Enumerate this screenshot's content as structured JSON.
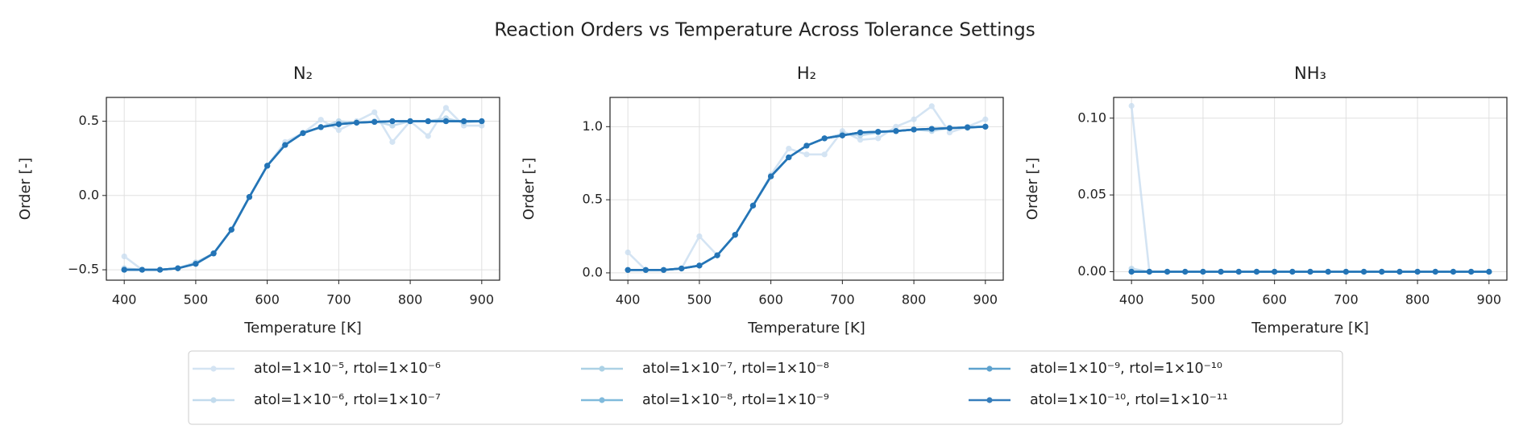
{
  "title": "Reaction Orders vs Temperature Across Tolerance Settings",
  "legend": "below",
  "chart_data": [
    {
      "type": "line",
      "title": "N₂",
      "xlabel": "Temperature [K]",
      "ylabel": "Order [-]",
      "x": [
        400,
        425,
        450,
        475,
        500,
        525,
        550,
        575,
        600,
        625,
        650,
        675,
        700,
        725,
        750,
        775,
        800,
        825,
        850,
        875,
        900
      ],
      "xlim": [
        375,
        925
      ],
      "ylim": [
        -0.57,
        0.66
      ],
      "xticks": [
        400,
        500,
        600,
        700,
        800,
        900
      ],
      "yticks": [
        {
          "value": -0.5,
          "label": "−0.5"
        },
        {
          "value": 0,
          "label": "0.0"
        },
        {
          "value": 0.5,
          "label": "0.5"
        }
      ],
      "grid": true,
      "series": [
        {
          "name": "atol=1×10⁻⁵, rtol=1×10⁻⁶",
          "color": "#c6dbef",
          "values": [
            -0.41,
            -0.5,
            -0.5,
            -0.49,
            -0.46,
            -0.39,
            -0.23,
            -0.01,
            0.2,
            0.36,
            0.42,
            0.51,
            0.44,
            0.5,
            0.56,
            0.36,
            0.5,
            0.4,
            0.59,
            0.47,
            0.47
          ]
        },
        {
          "name": "atol=1×10⁻⁶, rtol=1×10⁻⁷",
          "color": "#b4d3e9",
          "values": [
            -0.49,
            -0.5,
            -0.5,
            -0.49,
            -0.45,
            -0.39,
            -0.23,
            -0.01,
            0.2,
            0.34,
            0.42,
            0.46,
            0.5,
            0.49,
            0.5,
            0.47,
            0.5,
            0.5,
            0.52,
            0.49,
            0.5
          ]
        },
        {
          "name": "atol=1×10⁻⁷, rtol=1×10⁻⁸",
          "color": "#9ecae1",
          "values": [
            -0.5,
            -0.5,
            -0.5,
            -0.49,
            -0.46,
            -0.39,
            -0.23,
            -0.01,
            0.2,
            0.34,
            0.42,
            0.46,
            0.48,
            0.49,
            0.495,
            0.5,
            0.5,
            0.5,
            0.5,
            0.5,
            0.5
          ]
        },
        {
          "name": "atol=1×10⁻⁸, rtol=1×10⁻⁹",
          "color": "#6baed6",
          "values": [
            -0.5,
            -0.5,
            -0.5,
            -0.49,
            -0.46,
            -0.39,
            -0.23,
            -0.01,
            0.2,
            0.34,
            0.42,
            0.46,
            0.48,
            0.49,
            0.495,
            0.5,
            0.5,
            0.5,
            0.5,
            0.5,
            0.5
          ]
        },
        {
          "name": "atol=1×10⁻⁹, rtol=1×10⁻¹⁰",
          "color": "#4292c6",
          "values": [
            -0.5,
            -0.5,
            -0.5,
            -0.49,
            -0.46,
            -0.39,
            -0.23,
            -0.01,
            0.2,
            0.34,
            0.42,
            0.46,
            0.48,
            0.49,
            0.495,
            0.5,
            0.5,
            0.5,
            0.5,
            0.5,
            0.5
          ]
        },
        {
          "name": "atol=1×10⁻¹⁰, rtol=1×10⁻¹¹",
          "color": "#2171b5",
          "values": [
            -0.5,
            -0.5,
            -0.5,
            -0.49,
            -0.46,
            -0.39,
            -0.23,
            -0.01,
            0.2,
            0.34,
            0.42,
            0.46,
            0.48,
            0.49,
            0.495,
            0.5,
            0.5,
            0.5,
            0.5,
            0.5,
            0.5
          ]
        }
      ]
    },
    {
      "type": "line",
      "title": "H₂",
      "xlabel": "Temperature [K]",
      "ylabel": "Order [-]",
      "x": [
        400,
        425,
        450,
        475,
        500,
        525,
        550,
        575,
        600,
        625,
        650,
        675,
        700,
        725,
        750,
        775,
        800,
        825,
        850,
        875,
        900
      ],
      "xlim": [
        375,
        925
      ],
      "ylim": [
        -0.05,
        1.2
      ],
      "xticks": [
        400,
        500,
        600,
        700,
        800,
        900
      ],
      "yticks": [
        {
          "value": 0,
          "label": "0.0"
        },
        {
          "value": 0.5,
          "label": "0.5"
        },
        {
          "value": 1,
          "label": "1.0"
        }
      ],
      "grid": true,
      "series": [
        {
          "color": "#c6dbef",
          "values": [
            0.14,
            0.02,
            0.02,
            0.03,
            0.25,
            0.12,
            0.26,
            0.46,
            0.67,
            0.85,
            0.81,
            0.81,
            0.97,
            0.91,
            0.92,
            1.0,
            1.05,
            1.14,
            0.96,
            1.0,
            1.05
          ]
        },
        {
          "color": "#b4d3e9",
          "values": [
            0.02,
            0.02,
            0.02,
            0.03,
            0.05,
            0.12,
            0.26,
            0.46,
            0.66,
            0.79,
            0.87,
            0.92,
            0.95,
            0.94,
            0.96,
            0.97,
            0.98,
            0.97,
            0.99,
            0.99,
            1.0
          ]
        },
        {
          "color": "#9ecae1",
          "values": [
            0.02,
            0.02,
            0.02,
            0.03,
            0.05,
            0.12,
            0.26,
            0.46,
            0.66,
            0.79,
            0.87,
            0.92,
            0.94,
            0.96,
            0.965,
            0.97,
            0.98,
            0.985,
            0.99,
            0.995,
            1.0
          ]
        },
        {
          "color": "#6baed6",
          "values": [
            0.02,
            0.02,
            0.02,
            0.03,
            0.05,
            0.12,
            0.26,
            0.46,
            0.66,
            0.79,
            0.87,
            0.92,
            0.94,
            0.96,
            0.965,
            0.97,
            0.98,
            0.985,
            0.99,
            0.995,
            1.0
          ]
        },
        {
          "color": "#4292c6",
          "values": [
            0.02,
            0.02,
            0.02,
            0.03,
            0.05,
            0.12,
            0.26,
            0.46,
            0.66,
            0.79,
            0.87,
            0.92,
            0.94,
            0.96,
            0.965,
            0.97,
            0.98,
            0.985,
            0.99,
            0.995,
            1.0
          ]
        },
        {
          "color": "#2171b5",
          "values": [
            0.02,
            0.02,
            0.02,
            0.03,
            0.05,
            0.12,
            0.26,
            0.46,
            0.66,
            0.79,
            0.87,
            0.92,
            0.94,
            0.96,
            0.965,
            0.97,
            0.98,
            0.985,
            0.99,
            0.995,
            1.0
          ]
        }
      ]
    },
    {
      "type": "line",
      "title": "NH₃",
      "xlabel": "Temperature [K]",
      "ylabel": "Order [-]",
      "x": [
        400,
        425,
        450,
        475,
        500,
        525,
        550,
        575,
        600,
        625,
        650,
        675,
        700,
        725,
        750,
        775,
        800,
        825,
        850,
        875,
        900
      ],
      "xlim": [
        375,
        925
      ],
      "ylim": [
        -0.0055,
        0.1135
      ],
      "xticks": [
        400,
        500,
        600,
        700,
        800,
        900
      ],
      "yticks": [
        {
          "value": 0,
          "label": "0.00"
        },
        {
          "value": 0.05,
          "label": "0.05"
        },
        {
          "value": 0.1,
          "label": "0.10"
        }
      ],
      "grid": true,
      "series": [
        {
          "color": "#c6dbef",
          "values": [
            0.108,
            0,
            0,
            0,
            0,
            0,
            0,
            0,
            0,
            0,
            0,
            0,
            0,
            0,
            0,
            0,
            0,
            0,
            0,
            0,
            0
          ]
        },
        {
          "color": "#b4d3e9",
          "values": [
            0.002,
            0,
            0,
            0,
            0,
            0,
            0,
            0,
            0,
            0,
            0,
            0,
            0,
            0,
            0,
            0,
            0,
            0,
            0,
            0,
            0
          ]
        },
        {
          "color": "#9ecae1",
          "values": [
            0,
            0,
            0,
            0,
            0,
            0,
            0,
            0,
            0,
            0,
            0,
            0,
            0,
            0,
            0,
            0,
            0,
            0,
            0,
            0,
            0
          ]
        },
        {
          "color": "#6baed6",
          "values": [
            0,
            0,
            0,
            0,
            0,
            0,
            0,
            0,
            0,
            0,
            0,
            0,
            0,
            0,
            0,
            0,
            0,
            0,
            0,
            0,
            0
          ]
        },
        {
          "color": "#4292c6",
          "values": [
            0,
            0,
            0,
            0,
            0,
            0,
            0,
            0,
            0,
            0,
            0,
            0,
            0,
            0,
            0,
            0,
            0,
            0,
            0,
            0,
            0
          ]
        },
        {
          "color": "#2171b5",
          "values": [
            0,
            0,
            0,
            0,
            0,
            0,
            0,
            0,
            0,
            0,
            0,
            0,
            0,
            0,
            0,
            0,
            0,
            0,
            0,
            0,
            0
          ]
        }
      ]
    }
  ]
}
